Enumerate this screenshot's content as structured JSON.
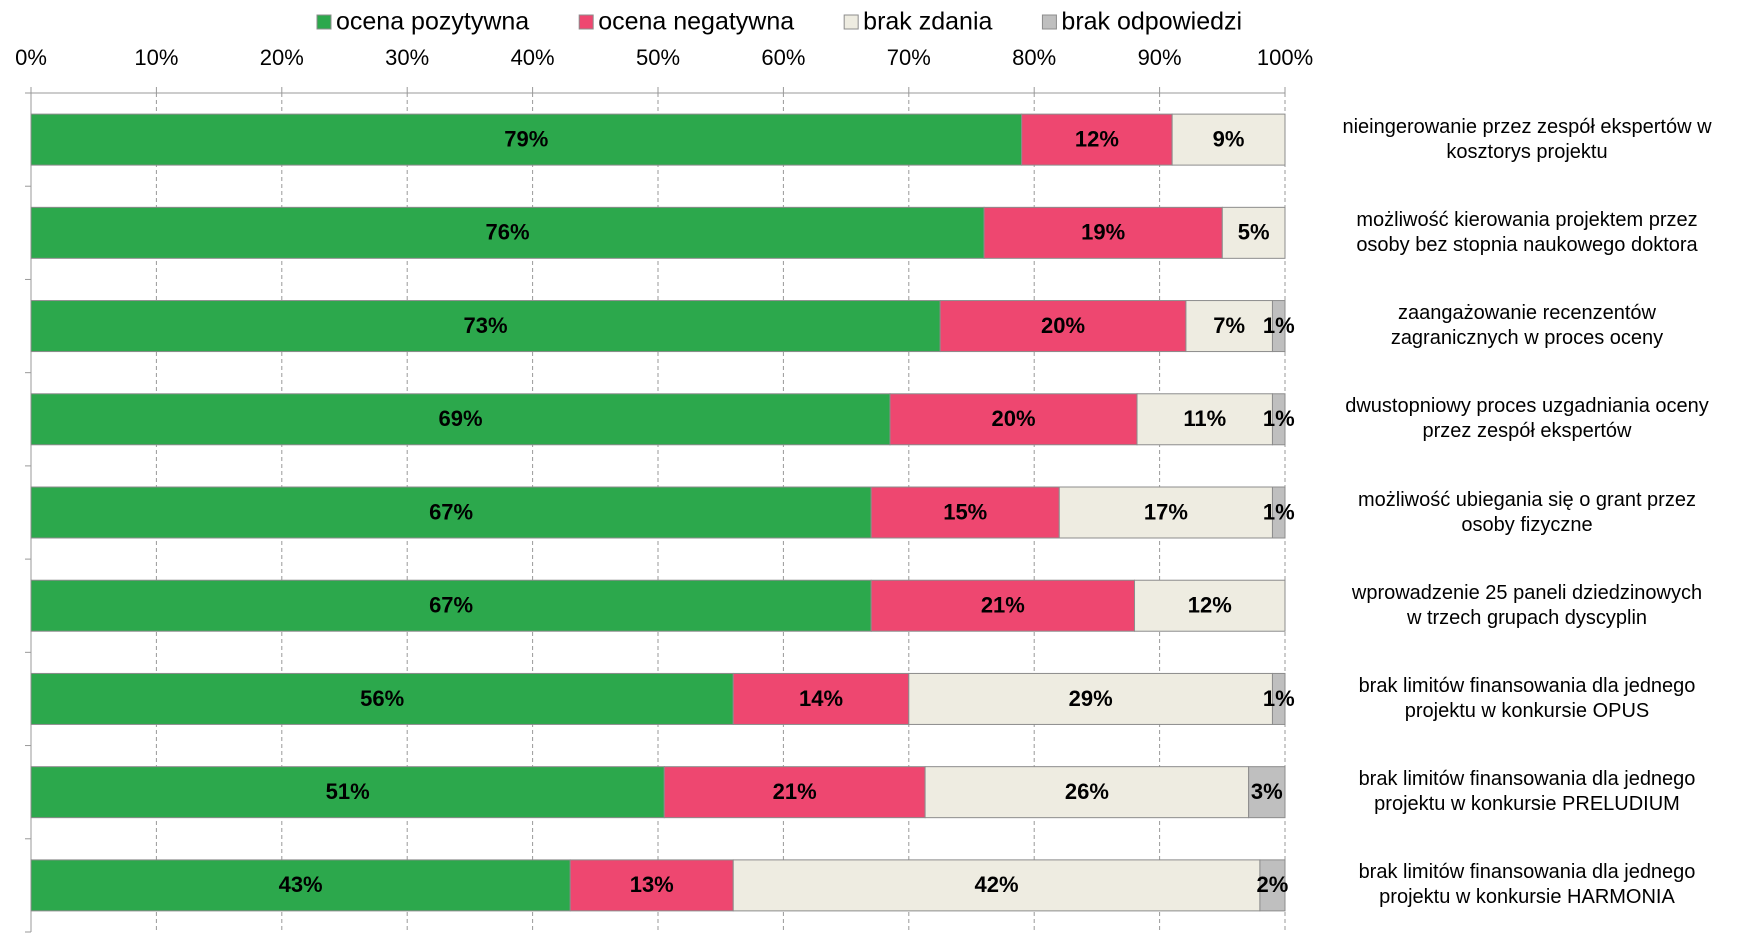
{
  "chart_data": {
    "type": "stacked_barh",
    "categories": [
      "nieingerowanie przez zespół ekspertów w\nkosztorys projektu",
      "możliwość kierowania projektem przez\nosoby bez stopnia naukowego doktora",
      "zaangażowanie recenzentów\nzagranicznych w proces oceny",
      "dwustopniowy proces uzgadniania oceny\nprzez zespół ekspertów",
      "możliwość ubiegania się o grant przez\nosoby fizyczne",
      "wprowadzenie 25 paneli dziedzinowych\nw trzech grupach dyscyplin",
      "brak limitów finansowania dla jednego\nprojektu w konkursie OPUS",
      "brak limitów finansowania dla jednego\nprojektu w konkursie PRELUDIUM",
      "brak limitów finansowania dla jednego\nprojektu w konkursie HARMONIA"
    ],
    "series": [
      {
        "name": "ocena pozytywna",
        "color": "#2ca84c",
        "values": [
          79,
          76,
          72.5,
          68.5,
          67,
          67,
          56,
          50.5,
          43
        ],
        "value_labels": [
          "79%",
          "76%",
          "73%",
          "69%",
          "67%",
          "67%",
          "56%",
          "51%",
          "43%"
        ]
      },
      {
        "name": "ocena negatywna",
        "color": "#ee4770",
        "values": [
          12,
          19,
          19.6,
          19.7,
          15,
          21,
          14,
          20.8,
          13
        ],
        "value_labels": [
          "12%",
          "19%",
          "20%",
          "20%",
          "15%",
          "21%",
          "14%",
          "21%",
          "13%"
        ]
      },
      {
        "name": "brak zdania",
        "color": "#eeece1",
        "values": [
          9,
          5,
          6.9,
          10.8,
          17,
          12,
          29,
          25.8,
          42
        ],
        "value_labels": [
          "9%",
          "5%",
          "7%",
          "11%",
          "17%",
          "12%",
          "29%",
          "26%",
          "42%"
        ]
      },
      {
        "name": "brak odpowiedzi",
        "color": "#bfbfbf",
        "values": [
          null,
          null,
          1,
          1,
          1,
          null,
          1,
          2.9,
          2
        ],
        "value_labels": [
          null,
          null,
          "1%",
          "1%",
          "1%",
          null,
          "1%",
          "3%",
          "2%"
        ]
      }
    ],
    "xlim": [
      0,
      100
    ],
    "xticks": [
      {
        "value": 0,
        "label": "0%"
      },
      {
        "value": 10,
        "label": "10%"
      },
      {
        "value": 20,
        "label": "20%"
      },
      {
        "value": 30,
        "label": "30%"
      },
      {
        "value": 40,
        "label": "40%"
      },
      {
        "value": 50,
        "label": "50%"
      },
      {
        "value": 60,
        "label": "60%"
      },
      {
        "value": 70,
        "label": "70%"
      },
      {
        "value": 80,
        "label": "80%"
      },
      {
        "value": 90,
        "label": "90%"
      },
      {
        "value": 100,
        "label": "100%"
      }
    ],
    "grid": true,
    "legend": "top"
  }
}
